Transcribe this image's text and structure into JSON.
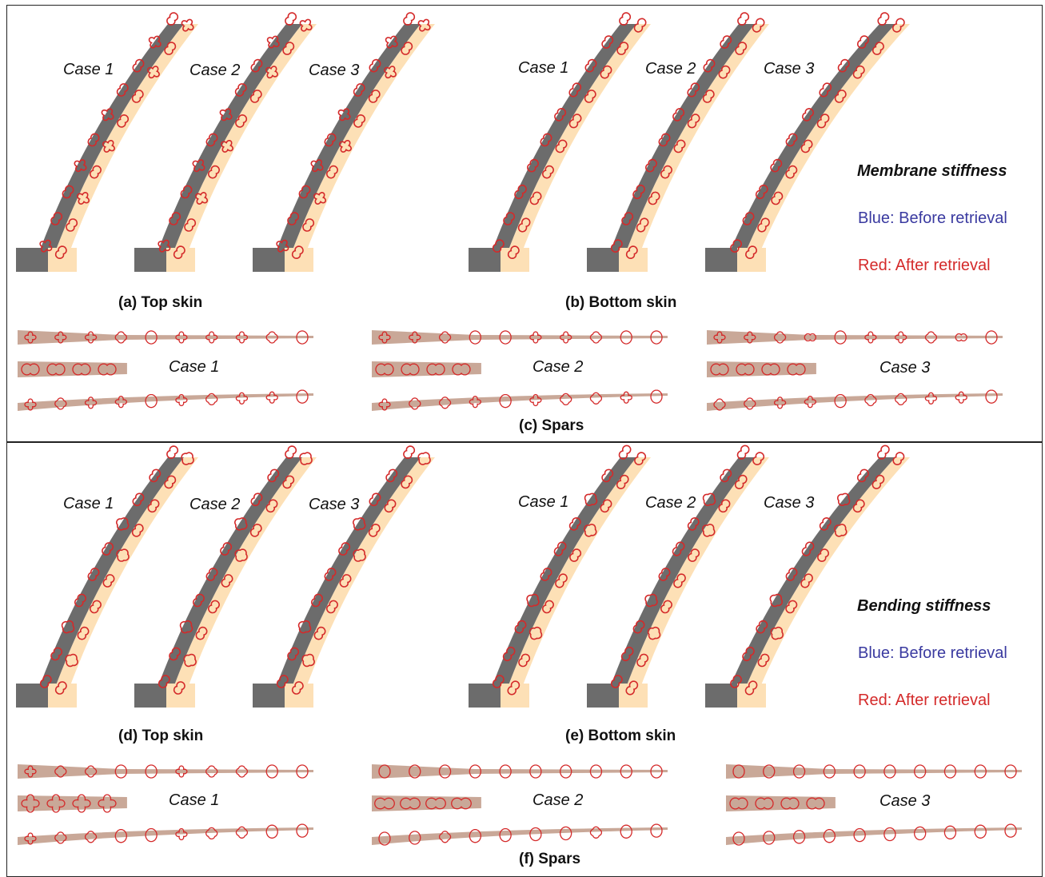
{
  "colors": {
    "before_retrieval": "#3a3aa0",
    "after_retrieval": "#d42a2a",
    "spar_band": "#c9a898",
    "skin_fill": "#fde0b6",
    "skin_dark": "#6c6c6c",
    "frame": "#222222"
  },
  "membrane": {
    "legend_title": "Membrane stiffness",
    "legend_blue": "Blue: Before retrieval",
    "legend_red": "Red: After retrieval",
    "top_skin": {
      "caption": "(a) Top skin",
      "cases": [
        "Case 1",
        "Case 2",
        "Case 3"
      ]
    },
    "bottom_skin": {
      "caption": "(b) Bottom skin",
      "cases": [
        "Case 1",
        "Case 2",
        "Case 3"
      ]
    },
    "spars": {
      "caption": "(c) Spars",
      "cases": [
        "Case 1",
        "Case 2",
        "Case 3"
      ]
    }
  },
  "bending": {
    "legend_title": "Bending stiffness",
    "legend_blue": "Blue: Before retrieval",
    "legend_red": "Red: After retrieval",
    "top_skin": {
      "caption": "(d) Top skin",
      "cases": [
        "Case 1",
        "Case 2",
        "Case 3"
      ]
    },
    "bottom_skin": {
      "caption": "(e) Bottom skin",
      "cases": [
        "Case 1",
        "Case 2",
        "Case 3"
      ]
    },
    "spars": {
      "caption": "(f) Spars",
      "cases": [
        "Case 1",
        "Case 2",
        "Case 3"
      ]
    }
  }
}
